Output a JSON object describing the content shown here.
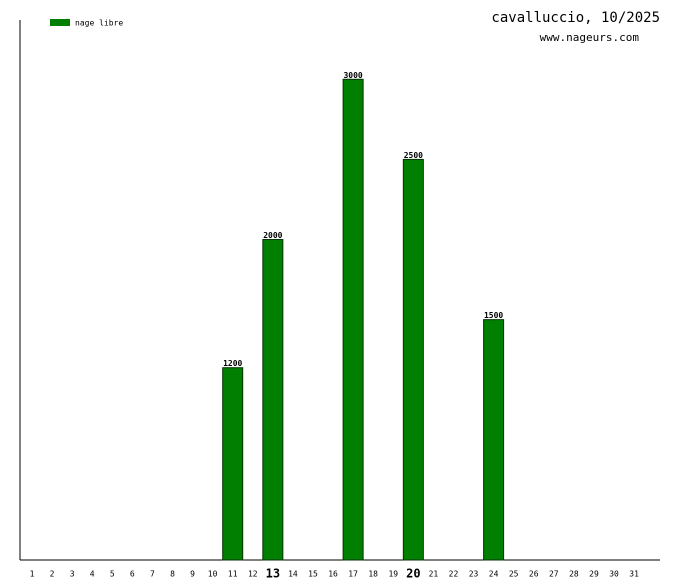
{
  "chart_data": {
    "type": "bar",
    "title": "cavalluccio, 10/2025",
    "subtitle": "www.nageurs.com",
    "categories": [
      1,
      2,
      3,
      4,
      5,
      6,
      7,
      8,
      9,
      10,
      11,
      12,
      13,
      14,
      15,
      16,
      17,
      18,
      19,
      20,
      21,
      22,
      23,
      24,
      25,
      26,
      27,
      28,
      29,
      30,
      31
    ],
    "series": [
      {
        "name": "nage libre",
        "color": "#007f00",
        "values": [
          0,
          0,
          0,
          0,
          0,
          0,
          0,
          0,
          0,
          0,
          1200,
          0,
          2000,
          0,
          0,
          0,
          3000,
          0,
          0,
          2500,
          0,
          0,
          0,
          1500,
          0,
          0,
          0,
          0,
          0,
          0,
          0
        ]
      }
    ],
    "highlight": [
      13,
      20
    ],
    "ylim": [
      0,
      3370
    ]
  }
}
